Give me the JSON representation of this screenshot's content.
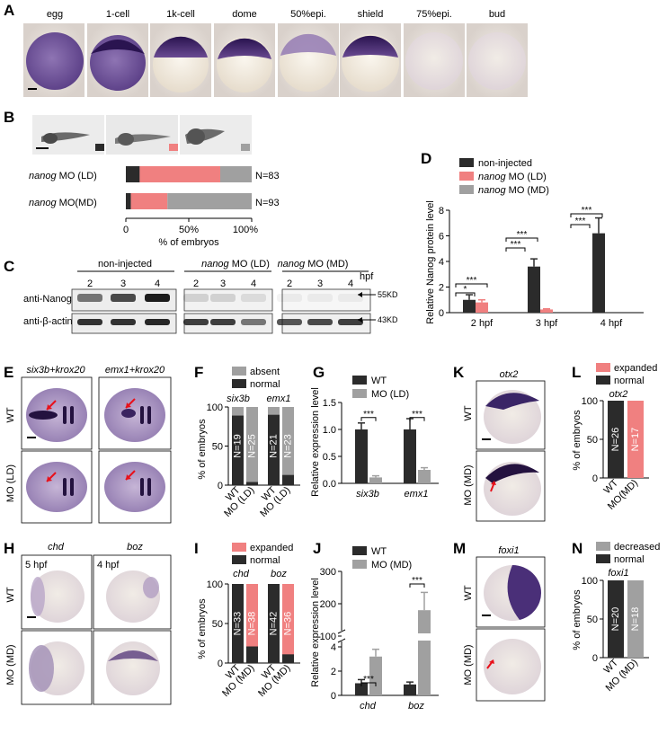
{
  "panel_labels": [
    "A",
    "B",
    "C",
    "D",
    "E",
    "F",
    "G",
    "H",
    "I",
    "J",
    "K",
    "L",
    "M",
    "N"
  ],
  "panelA": {
    "stages": [
      "egg",
      "1-cell",
      "1k-cell",
      "dome",
      "50%epi.",
      "shield",
      "75%epi.",
      "bud"
    ]
  },
  "panelB": {
    "legend_colors": [
      "#2b2b2b",
      "#f08080",
      "#a0a0a0"
    ],
    "rows": [
      {
        "gene": "nanog",
        "label": " MO (LD)",
        "n": "N=83",
        "segments": [
          11,
          64,
          25
        ]
      },
      {
        "gene": "nanog",
        "label": " MO(MD)",
        "n": "N=93",
        "segments": [
          4,
          29,
          67
        ]
      }
    ],
    "xticks": [
      "0",
      "50%",
      "100%"
    ],
    "xlabel": "% of embryos"
  },
  "panelC": {
    "groups": [
      {
        "gene": "",
        "label": "non-injected"
      },
      {
        "gene": "nanog",
        "label": " MO (LD)"
      },
      {
        "gene": "nanog",
        "label": " MO (MD)"
      }
    ],
    "lanes": [
      "2",
      "3",
      "4"
    ],
    "unit": "hpf",
    "rows": [
      "anti-Nanog",
      "anti-β-actin"
    ],
    "markers": [
      "55KD",
      "43KD"
    ],
    "nanog_intensity": [
      [
        0.55,
        0.75,
        0.95
      ],
      [
        0.15,
        0.15,
        0.1
      ],
      [
        0.05,
        0.05,
        0.05
      ]
    ],
    "actin_intensity": [
      [
        0.85,
        0.85,
        0.9
      ],
      [
        0.8,
        0.8,
        0.55
      ],
      [
        0.7,
        0.75,
        0.8
      ]
    ]
  },
  "chart_data": [
    {
      "panel": "D",
      "type": "bar",
      "categories": [
        "2 hpf",
        "3 hpf",
        "4 hpf"
      ],
      "series": [
        {
          "name": "non-injected",
          "values": [
            1.0,
            3.6,
            6.2
          ],
          "err": [
            0.4,
            0.6,
            1.2
          ],
          "color": "#2b2b2b"
        },
        {
          "name": "nanog MO (LD)",
          "values": [
            0.8,
            0.25,
            0.0
          ],
          "err": [
            0.2,
            0.05,
            0.0
          ],
          "color": "#f08080"
        },
        {
          "name": "nanog MO (MD)",
          "values": [
            0.0,
            0.0,
            0.0
          ],
          "err": [
            0.0,
            0.0,
            0.0
          ],
          "color": "#a0a0a0"
        }
      ],
      "legend": [
        {
          "gene": "",
          "label": "non-injected"
        },
        {
          "gene": "nanog",
          "label": " MO (LD)"
        },
        {
          "gene": "nanog",
          "label": " MO (MD)"
        }
      ],
      "ylabel": "Relative Nanog protein level",
      "ylim": [
        0,
        8
      ],
      "yticks": [
        "0",
        "2",
        "4",
        "6",
        "8"
      ],
      "significance": [
        "*",
        "***",
        "***",
        "***",
        "***",
        "***"
      ]
    },
    {
      "panel": "F",
      "type": "bar",
      "groups": [
        "six3b",
        "emx1"
      ],
      "categories": [
        "WT",
        "MO (LD)",
        "WT",
        "MO (LD)"
      ],
      "normal": [
        89,
        4,
        90,
        13
      ],
      "n": [
        "N=19",
        "N=25",
        "N=21",
        "N=23"
      ],
      "legend": [
        "absent",
        "normal"
      ],
      "ylabel": "% of embryos",
      "ylim": [
        0,
        100
      ],
      "yticks": [
        "0",
        "50",
        "100"
      ]
    },
    {
      "panel": "G",
      "type": "bar",
      "categories": [
        "six3b",
        "emx1"
      ],
      "series": [
        {
          "name": "WT",
          "values": [
            1.0,
            1.0
          ],
          "err": [
            0.12,
            0.2
          ],
          "color": "#2b2b2b"
        },
        {
          "name": "MO (LD)",
          "values": [
            0.11,
            0.25
          ],
          "err": [
            0.03,
            0.04
          ],
          "color": "#a0a0a0"
        }
      ],
      "ylabel": "Relative expression level",
      "ylim": [
        0,
        1.5
      ],
      "yticks": [
        "0.0",
        "0.5",
        "1.0",
        "1.5"
      ],
      "significance": [
        "***",
        "***"
      ]
    },
    {
      "panel": "I",
      "type": "bar",
      "groups": [
        "chd",
        "boz"
      ],
      "categories": [
        "WT",
        "MO (MD)",
        "WT",
        "MO (MD)"
      ],
      "normal": [
        100,
        21,
        100,
        11
      ],
      "n": [
        "N=33",
        "N=38",
        "N=42",
        "N=36"
      ],
      "legend": [
        "expanded",
        "normal"
      ],
      "ylabel": "% of embryos",
      "ylim": [
        0,
        100
      ],
      "yticks": [
        "0",
        "50",
        "100"
      ]
    },
    {
      "panel": "J",
      "type": "bar",
      "categories": [
        "chd",
        "boz"
      ],
      "series": [
        {
          "name": "WT",
          "values": [
            1.0,
            0.9
          ],
          "err": [
            0.3,
            0.2
          ],
          "color": "#2b2b2b"
        },
        {
          "name": "MO (MD)",
          "values": [
            3.2,
            180
          ],
          "err": [
            0.6,
            55
          ],
          "color": "#a0a0a0"
        }
      ],
      "ylabel": "Relative expression level",
      "yticks": [
        "0",
        "2",
        "4",
        "100",
        "200",
        "300"
      ],
      "significance": [
        "***",
        "***"
      ]
    },
    {
      "panel": "L",
      "type": "bar",
      "title": "otx2",
      "categories": [
        "WT",
        "MO(MD)"
      ],
      "values": [
        100,
        100
      ],
      "n": [
        "N=26",
        "N=17"
      ],
      "legend": [
        "expanded",
        "normal"
      ],
      "ylabel": "% of embryos",
      "ylim": [
        0,
        100
      ],
      "yticks": [
        "0",
        "50",
        "100"
      ]
    },
    {
      "panel": "N",
      "type": "bar",
      "title": "foxi1",
      "categories": [
        "WT",
        "MO (MD)"
      ],
      "values": [
        100,
        100
      ],
      "n": [
        "N=20",
        "N=18"
      ],
      "legend": [
        "decreased",
        "normal"
      ],
      "ylabel": "% of embryos",
      "ylim": [
        0,
        100
      ],
      "yticks": [
        "0",
        "50",
        "100"
      ]
    }
  ],
  "panelE": {
    "cols": [
      "six3b+krox20",
      "emx1+krox20"
    ],
    "rows": [
      "WT",
      "MO (LD)"
    ]
  },
  "panelH": {
    "cols": [
      "chd",
      "boz"
    ],
    "rows": [
      "WT",
      "MO (MD)"
    ],
    "stage_tags": [
      "5 hpf",
      "4 hpf"
    ]
  },
  "panelK": {
    "title": "otx2",
    "rows": [
      "WT",
      "MO (MD)"
    ]
  },
  "panelM": {
    "title": "foxi1",
    "rows": [
      "WT",
      "MO (MD)"
    ]
  },
  "colors": {
    "dark": "#2b2b2b",
    "pink": "#f08080",
    "gray": "#a0a0a0",
    "stain": "#3d1f66"
  }
}
